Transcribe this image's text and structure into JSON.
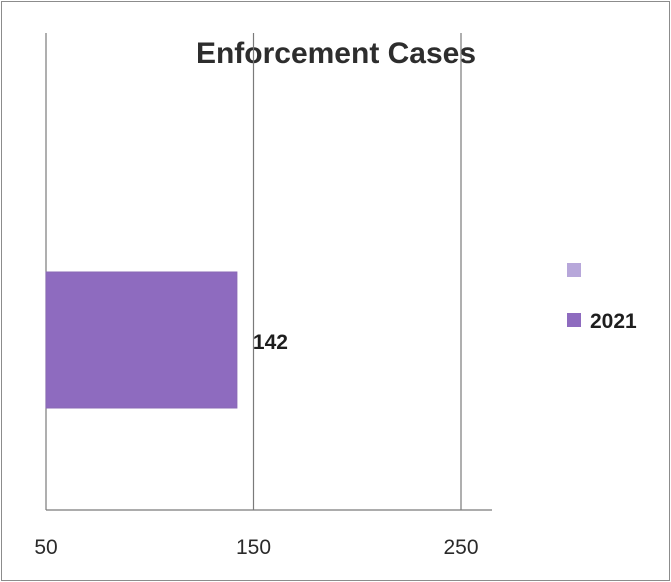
{
  "chart_data": {
    "type": "bar",
    "orientation": "horizontal",
    "title": "Enforcement Cases",
    "xlabel": "",
    "ylabel": "",
    "xlim": [
      50,
      250
    ],
    "x_ticks": [
      "50",
      "150",
      "250"
    ],
    "grid": "vertical",
    "legend_position": "right",
    "series": [
      {
        "name": "",
        "color": "#b7a7da",
        "values": [
          null
        ]
      },
      {
        "name": "2021",
        "color": "#8e6bbf",
        "values": [
          142
        ],
        "data_labels": [
          "142"
        ]
      }
    ]
  }
}
